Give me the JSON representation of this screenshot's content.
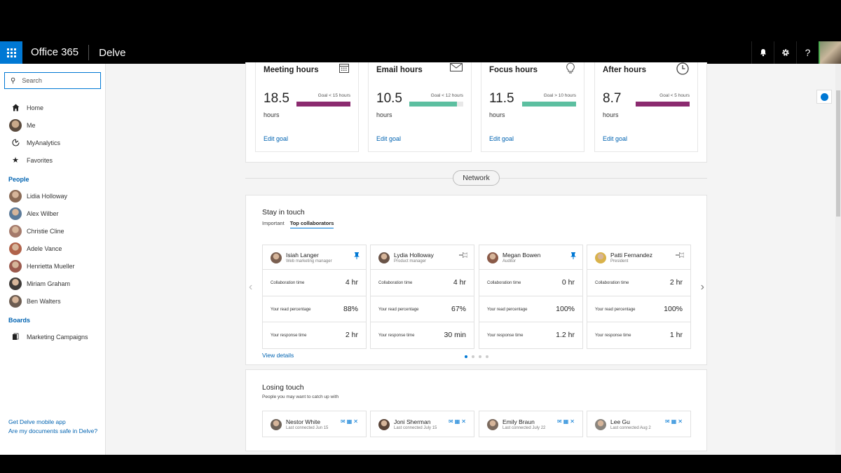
{
  "topbar": {
    "brand": "Office 365",
    "app": "Delve",
    "bell_icon": "bell-icon",
    "gear_icon": "gear-icon",
    "help_label": "?"
  },
  "sidebar": {
    "search_placeholder": "Search",
    "nav": [
      {
        "label": "Home",
        "icon": "home-icon"
      },
      {
        "label": "Me",
        "icon": "avatar"
      },
      {
        "label": "MyAnalytics",
        "icon": "analytics-icon"
      },
      {
        "label": "Favorites",
        "icon": "star-icon"
      }
    ],
    "people_heading": "People",
    "people": [
      {
        "name": "Lidia Holloway",
        "color": "#8a6a55"
      },
      {
        "name": "Alex Wilber",
        "color": "#5b7a99"
      },
      {
        "name": "Christie Cline",
        "color": "#a47a6b"
      },
      {
        "name": "Adele Vance",
        "color": "#b0624a"
      },
      {
        "name": "Henrietta Mueller",
        "color": "#9b5a4e"
      },
      {
        "name": "Miriam Graham",
        "color": "#3e3a38"
      },
      {
        "name": "Ben Walters",
        "color": "#6d5d52"
      }
    ],
    "boards_heading": "Boards",
    "boards": [
      {
        "label": "Marketing Campaigns",
        "icon": "board-icon"
      }
    ],
    "footer_links": [
      "Get Delve mobile app",
      "Are my documents safe in Delve?"
    ]
  },
  "metrics": [
    {
      "title": "Meeting hours",
      "icon": "calendar-icon",
      "value": "18.5",
      "unit": "hours",
      "goal": "Goal < 15 hours",
      "fill": 1.0,
      "color": "#8b2a6f",
      "edit": "Edit goal"
    },
    {
      "title": "Email hours",
      "icon": "mail-icon",
      "value": "10.5",
      "unit": "hours",
      "goal": "Goal < 12 hours",
      "fill": 0.88,
      "color": "#5cbfa0",
      "edit": "Edit goal"
    },
    {
      "title": "Focus hours",
      "icon": "lightbulb-icon",
      "value": "11.5",
      "unit": "hours",
      "goal": "Goal > 10 hours",
      "fill": 1.0,
      "color": "#5cbfa0",
      "edit": "Edit goal"
    },
    {
      "title": "After hours",
      "icon": "clock-icon",
      "value": "8.7",
      "unit": "hours",
      "goal": "Goal < 5 hours",
      "fill": 1.0,
      "color": "#8b2a6f",
      "edit": "Edit goal"
    }
  ],
  "network_label": "Network",
  "stay_in_touch": {
    "title": "Stay in touch",
    "tabs": [
      "Important",
      "Top collaborators"
    ],
    "row_labels": [
      "Collaboration time",
      "Your read percentage",
      "Your response time"
    ],
    "collaborators": [
      {
        "name": "Isiah Langer",
        "role": "Web marketing manager",
        "pinned": true,
        "values": [
          "4 hr",
          "88%",
          "2 hr"
        ],
        "color": "#7a5f50"
      },
      {
        "name": "Lydia Holloway",
        "role": "Product manager",
        "pinned": false,
        "values": [
          "4 hr",
          "67%",
          "30 min"
        ],
        "color": "#6a5448"
      },
      {
        "name": "Megan Bowen",
        "role": "Auditor",
        "pinned": true,
        "values": [
          "0 hr",
          "100%",
          "1.2 hr"
        ],
        "color": "#8a5a48"
      },
      {
        "name": "Patti Fernandez",
        "role": "President",
        "pinned": false,
        "values": [
          "2 hr",
          "100%",
          "1 hr"
        ],
        "color": "#d9b24a"
      }
    ],
    "view_details": "View details",
    "page_count": 4,
    "active_page": 1
  },
  "losing_touch": {
    "title": "Losing touch",
    "subtitle": "People you may want to catch up with",
    "people": [
      {
        "name": "Nestor White",
        "sub": "Last connected Jun 15",
        "color": "#6d6258"
      },
      {
        "name": "Joni Sherman",
        "sub": "Last connected July 15",
        "color": "#5a4438"
      },
      {
        "name": "Emily Braun",
        "sub": "Last connected July 22",
        "color": "#7b6a5e"
      },
      {
        "name": "Lee Gu",
        "sub": "Last connected Aug 2",
        "color": "#8a857e"
      }
    ]
  }
}
